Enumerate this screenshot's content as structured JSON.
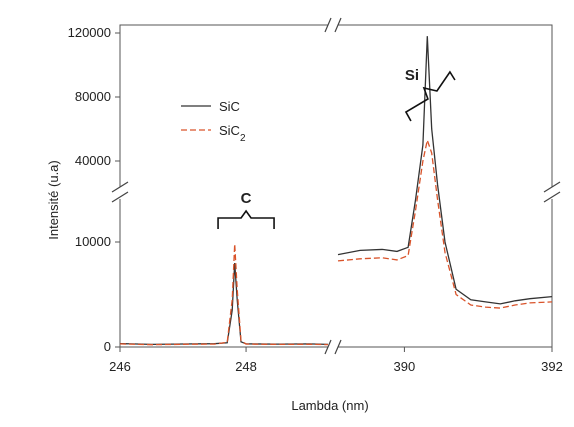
{
  "chart_data": {
    "type": "line",
    "xlabel": "Lambda (nm)",
    "ylabel": "Intensité (u.a)",
    "x_ticks_left": [
      "246",
      "248"
    ],
    "x_ticks_right": [
      "390",
      "392"
    ],
    "y_ticks_lower": [
      "0",
      "10000"
    ],
    "y_ticks_upper": [
      "40000",
      "80000",
      "120000"
    ],
    "x_range_left": [
      246,
      249.3
    ],
    "x_range_right": [
      389.1,
      392
    ],
    "y_range_lower": [
      0,
      14000
    ],
    "y_range_upper": [
      25000,
      125000
    ],
    "legend_position": "upper-left",
    "grid": false,
    "annotations": [
      {
        "text": "C",
        "x": 248,
        "panel": "lower"
      },
      {
        "text": "Si",
        "x": 390.4,
        "panel": "upper"
      }
    ],
    "series": [
      {
        "name": "SiC",
        "color": "#333333",
        "style": "solid",
        "left_points": [
          [
            246.0,
            320
          ],
          [
            246.5,
            250
          ],
          [
            247.0,
            290
          ],
          [
            247.5,
            310
          ],
          [
            247.7,
            400
          ],
          [
            247.78,
            3500
          ],
          [
            247.82,
            8000
          ],
          [
            247.86,
            4500
          ],
          [
            247.92,
            500
          ],
          [
            248.0,
            300
          ],
          [
            248.5,
            280
          ],
          [
            249.0,
            300
          ],
          [
            249.3,
            250
          ]
        ],
        "right_points": [
          [
            389.1,
            8800
          ],
          [
            389.4,
            9200
          ],
          [
            389.7,
            9300
          ],
          [
            389.9,
            9100
          ],
          [
            390.05,
            9500
          ],
          [
            390.15,
            14000
          ],
          [
            390.25,
            50000
          ],
          [
            390.31,
            118000
          ],
          [
            390.37,
            60000
          ],
          [
            390.45,
            16000
          ],
          [
            390.55,
            10000
          ],
          [
            390.7,
            5500
          ],
          [
            390.9,
            4500
          ],
          [
            391.1,
            4300
          ],
          [
            391.3,
            4100
          ],
          [
            391.5,
            4400
          ],
          [
            391.7,
            4600
          ],
          [
            392.0,
            4800
          ]
        ]
      },
      {
        "name": "SiC2",
        "color": "#d9532a",
        "style": "dashed",
        "left_points": [
          [
            246.0,
            300
          ],
          [
            246.5,
            220
          ],
          [
            247.0,
            260
          ],
          [
            247.5,
            280
          ],
          [
            247.7,
            450
          ],
          [
            247.78,
            4500
          ],
          [
            247.82,
            9800
          ],
          [
            247.86,
            5500
          ],
          [
            247.92,
            600
          ],
          [
            248.0,
            280
          ],
          [
            248.5,
            250
          ],
          [
            249.0,
            260
          ],
          [
            249.3,
            230
          ]
        ],
        "right_points": [
          [
            389.1,
            8200
          ],
          [
            389.4,
            8400
          ],
          [
            389.7,
            8500
          ],
          [
            389.9,
            8300
          ],
          [
            390.05,
            8700
          ],
          [
            390.15,
            13000
          ],
          [
            390.25,
            40000
          ],
          [
            390.31,
            53000
          ],
          [
            390.37,
            45000
          ],
          [
            390.45,
            14000
          ],
          [
            390.55,
            9000
          ],
          [
            390.7,
            5000
          ],
          [
            390.9,
            4000
          ],
          [
            391.1,
            3800
          ],
          [
            391.3,
            3700
          ],
          [
            391.5,
            4000
          ],
          [
            391.7,
            4200
          ],
          [
            392.0,
            4300
          ]
        ]
      }
    ]
  }
}
